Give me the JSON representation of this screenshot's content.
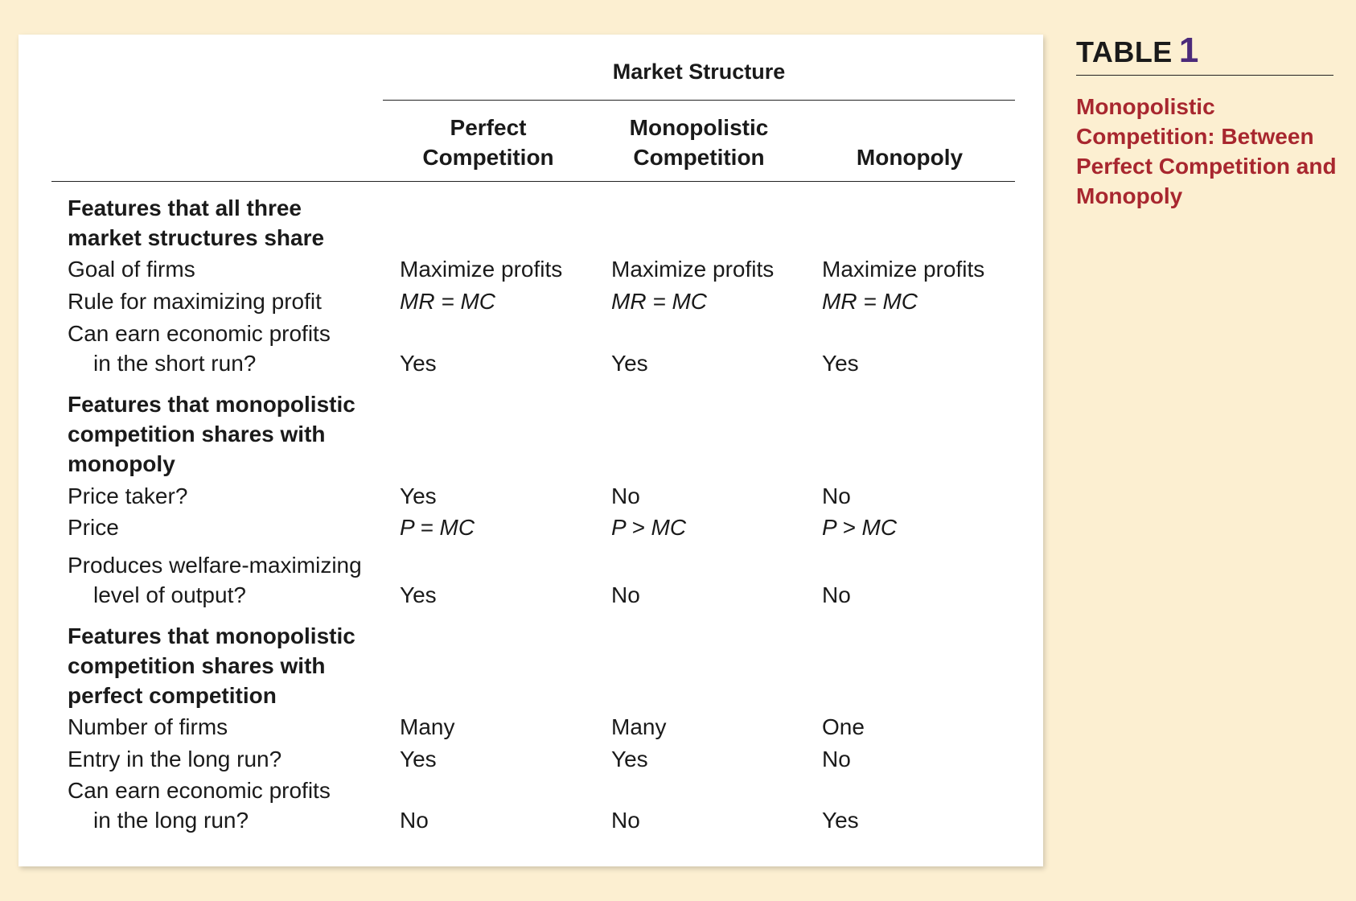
{
  "sidebar": {
    "label": "TABLE",
    "number": "1",
    "title": "Monopolistic Competition: Between Perfect Competition and Monopoly"
  },
  "table": {
    "group_header": "Market Structure",
    "columns": [
      {
        "line1": "Perfect",
        "line2": "Competition"
      },
      {
        "line1": "Monopolistic",
        "line2": "Competition"
      },
      {
        "line1": "",
        "line2": "Monopoly"
      }
    ],
    "sections": [
      {
        "title_lines": [
          "Features that all three",
          "market structures share"
        ],
        "rows": [
          {
            "label_lines": [
              "Goal of firms"
            ],
            "values": [
              "Maximize profits",
              "Maximize profits",
              "Maximize profits"
            ]
          },
          {
            "label_lines": [
              "Rule for maximizing profit"
            ],
            "values": [
              "MR = MC",
              "MR = MC",
              "MR = MC"
            ]
          },
          {
            "label_lines": [
              "Can earn economic profits",
              "in the short run?"
            ],
            "values": [
              "Yes",
              "Yes",
              "Yes"
            ]
          }
        ]
      },
      {
        "title_lines": [
          "Features that monopolistic",
          "competition shares with",
          "monopoly"
        ],
        "rows": [
          {
            "label_lines": [
              "Price taker?"
            ],
            "values": [
              "Yes",
              "No",
              "No"
            ]
          },
          {
            "label_lines": [
              "Price"
            ],
            "values": [
              "P = MC",
              "P > MC",
              "P > MC"
            ]
          },
          {
            "label_lines": [
              "Produces welfare-maximizing",
              "level of output?"
            ],
            "values": [
              "Yes",
              "No",
              "No"
            ]
          }
        ]
      },
      {
        "title_lines": [
          "Features that monopolistic",
          "competition shares with",
          "perfect competition"
        ],
        "rows": [
          {
            "label_lines": [
              "Number of firms"
            ],
            "values": [
              "Many",
              "Many",
              "One"
            ]
          },
          {
            "label_lines": [
              "Entry in the long run?"
            ],
            "values": [
              "Yes",
              "Yes",
              "No"
            ]
          },
          {
            "label_lines": [
              "Can earn economic profits",
              "in the long run?"
            ],
            "values": [
              "No",
              "No",
              "Yes"
            ]
          }
        ]
      }
    ]
  }
}
